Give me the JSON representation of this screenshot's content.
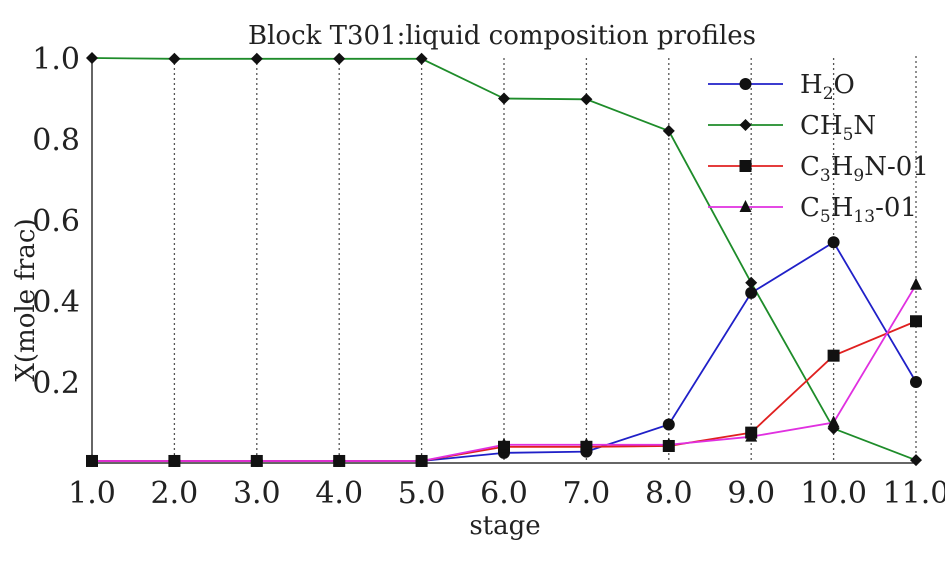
{
  "chart_data": {
    "type": "line",
    "title": "Block T301:liquid composition profiles",
    "xlabel": "stage",
    "ylabel": "X(mole frac)",
    "x": [
      1,
      2,
      3,
      4,
      5,
      6,
      7,
      8,
      9,
      10,
      11
    ],
    "xlim": [
      1,
      11
    ],
    "ylim": [
      0,
      1.0
    ],
    "x_tick_labels": [
      "1.0",
      "2.0",
      "3.0",
      "4.0",
      "5.0",
      "6.0",
      "7.0",
      "8.0",
      "9.0",
      "10.0",
      "11.0"
    ],
    "y_ticks": [
      0.2,
      0.4,
      0.6,
      0.8,
      1.0
    ],
    "y_tick_labels": [
      "0.2",
      "0.4",
      "0.6",
      "0.8",
      "1.0"
    ],
    "grid": "vertical dotted",
    "legend": "top-right",
    "series": [
      {
        "name": "H2O",
        "legend_base": "H",
        "legend_sub": "2",
        "legend_tail": "O",
        "color": "#2020c8",
        "marker": "circle",
        "values": [
          0.005,
          0.005,
          0.005,
          0.005,
          0.005,
          0.025,
          0.028,
          0.095,
          0.42,
          0.545,
          0.2
        ]
      },
      {
        "name": "CH5N",
        "legend_base": "CH",
        "legend_sub": "5",
        "legend_tail": "N",
        "color": "#1e8c2a",
        "marker": "diamond",
        "values": [
          1.0,
          0.998,
          0.998,
          0.998,
          0.998,
          0.9,
          0.898,
          0.82,
          0.445,
          0.085,
          0.007
        ]
      },
      {
        "name": "C3H9N-01",
        "legend_base": "C",
        "legend_sub": "3",
        "legend_mid": "H",
        "legend_sub2": "9",
        "legend_tail": "N-01",
        "color": "#e02020",
        "marker": "square",
        "values": [
          0.005,
          0.005,
          0.005,
          0.005,
          0.005,
          0.04,
          0.04,
          0.042,
          0.075,
          0.265,
          0.35
        ]
      },
      {
        "name": "C5H13-01",
        "legend_base": "C",
        "legend_sub": "5",
        "legend_mid": "H",
        "legend_sub2": "13",
        "legend_tail": "-01",
        "color": "#e030e0",
        "marker": "triangle",
        "values": [
          0.005,
          0.005,
          0.005,
          0.005,
          0.005,
          0.045,
          0.045,
          0.045,
          0.065,
          0.1,
          0.44
        ]
      }
    ]
  }
}
